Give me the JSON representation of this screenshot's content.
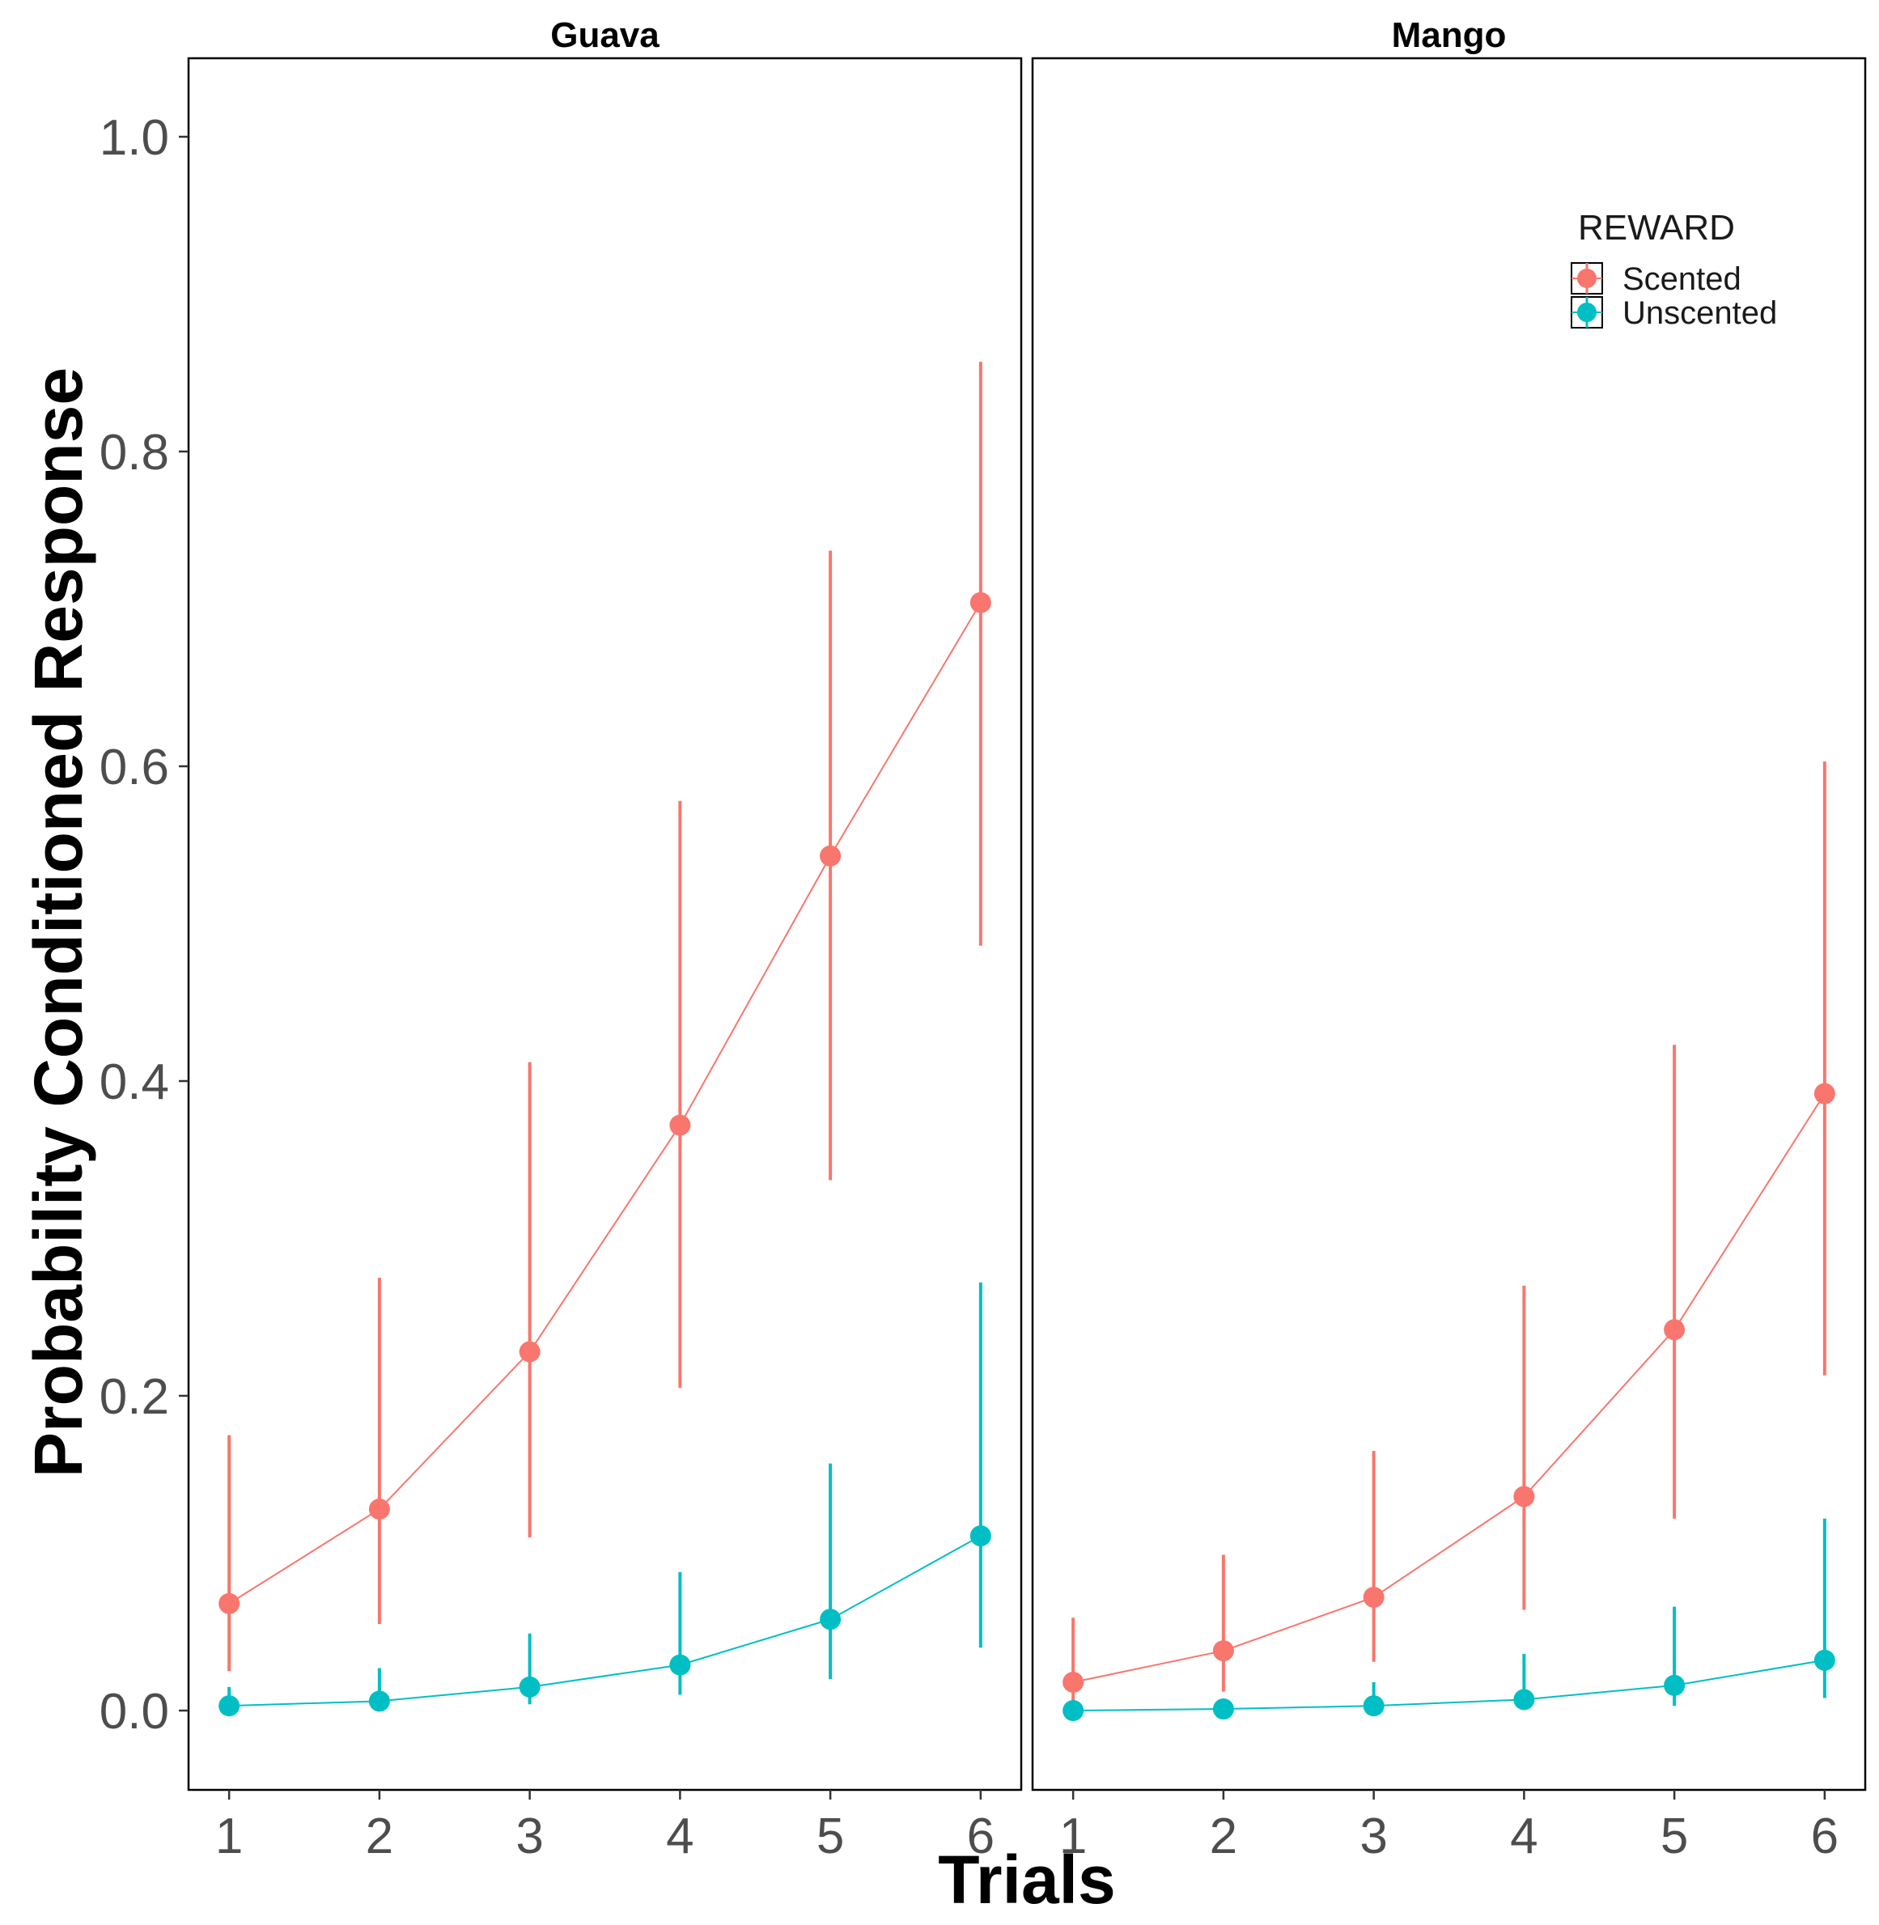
{
  "chart_data": {
    "type": "line",
    "xlabel": "Trials",
    "ylabel": "Probability Conditioned Response",
    "ylim": [
      -0.1,
      1.05
    ],
    "yticks": [
      0.0,
      0.2,
      0.4,
      0.6,
      0.8,
      1.0
    ],
    "ytick_labels": [
      "0.0",
      "0.2",
      "0.4",
      "0.6",
      "0.8",
      "1.0"
    ],
    "x": [
      1,
      2,
      3,
      4,
      5,
      6
    ],
    "xtick_labels": [
      "1",
      "2",
      "3",
      "4",
      "5",
      "6"
    ],
    "xlim": [
      0.73,
      6.27
    ],
    "legend": {
      "title": "REWARD",
      "position": "top-right",
      "entries": [
        {
          "name": "Scented",
          "color": "#F8766D"
        },
        {
          "name": "Unscented",
          "color": "#00BFC4"
        }
      ]
    },
    "panels": [
      {
        "title": "Guava",
        "series": [
          {
            "name": "Scented",
            "color": "#F8766D",
            "values": [
              0.068,
              0.128,
              0.228,
              0.372,
              0.543,
              0.704
            ],
            "lower": [
              0.025,
              0.055,
              0.11,
              0.205,
              0.337,
              0.486
            ],
            "upper": [
              0.175,
              0.275,
              0.412,
              0.578,
              0.737,
              0.857
            ]
          },
          {
            "name": "Unscented",
            "color": "#00BFC4",
            "values": [
              0.003,
              0.006,
              0.015,
              0.029,
              0.058,
              0.111
            ],
            "lower": [
              0.0,
              0.002,
              0.004,
              0.01,
              0.02,
              0.04
            ],
            "upper": [
              0.015,
              0.027,
              0.049,
              0.088,
              0.157,
              0.272
            ]
          }
        ]
      },
      {
        "title": "Mango",
        "series": [
          {
            "name": "Scented",
            "color": "#F8766D",
            "values": [
              0.018,
              0.038,
              0.072,
              0.136,
              0.242,
              0.392
            ],
            "lower": [
              0.004,
              0.012,
              0.031,
              0.064,
              0.122,
              0.213
            ],
            "upper": [
              0.059,
              0.099,
              0.165,
              0.27,
              0.423,
              0.603
            ]
          },
          {
            "name": "Unscented",
            "color": "#00BFC4",
            "values": [
              0.0,
              0.001,
              0.003,
              0.007,
              0.016,
              0.032
            ],
            "lower": [
              0.0,
              0.0,
              0.0,
              0.001,
              0.003,
              0.008
            ],
            "upper": [
              0.003,
              0.006,
              0.018,
              0.036,
              0.066,
              0.122
            ]
          }
        ]
      }
    ]
  }
}
